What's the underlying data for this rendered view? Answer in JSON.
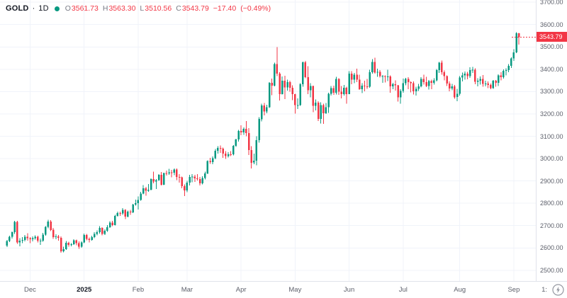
{
  "legend": {
    "symbol": "GOLD",
    "separator": "·",
    "interval": "1D",
    "ohlc": {
      "o_label": "O",
      "o_value": "3561.73",
      "h_label": "H",
      "h_value": "3563.30",
      "l_label": "L",
      "l_value": "3510.56",
      "c_label": "C",
      "c_value": "3543.79",
      "change": "−17.40",
      "change_pct": "(−0.49%)"
    }
  },
  "colors": {
    "up": "#089981",
    "down": "#f23645",
    "grid": "#f0f3fa",
    "axis_border": "#e0e3eb",
    "axis_text": "#5d606b",
    "legend_text": "#131722",
    "price_tag_bg": "#f23645",
    "price_tag_text": "#ffffff",
    "icon_gray": "#9598a1"
  },
  "price_axis": {
    "ticks": [
      "3700.00",
      "3600.00",
      "3500.00",
      "3400.00",
      "3300.00",
      "3200.00",
      "3100.00",
      "3000.00",
      "2900.00",
      "2800.00",
      "2700.00",
      "2600.00",
      "2500.00"
    ],
    "last_price_label": "3543.79"
  },
  "time_axis": {
    "corner_time": "1:"
  },
  "chart_data": {
    "type": "candlestick",
    "title": "GOLD · 1D",
    "symbol": "GOLD",
    "interval": "1D",
    "ohlc_current": {
      "open": 3561.73,
      "high": 3563.3,
      "low": 3510.56,
      "close": 3543.79,
      "change": -17.4,
      "change_percent": -0.49
    },
    "last_price": 3543.79,
    "y_axis": {
      "min": 2452,
      "max": 3710,
      "tick_min": 2500,
      "tick_max": 3700,
      "tick_step": 100
    },
    "x_range": "Nov 2024 – Sep 2025, daily bars",
    "legend_position": "top-left",
    "grid": true,
    "month_ticks": [
      {
        "label": "Dec",
        "index": 9,
        "year": false
      },
      {
        "label": "2025",
        "index": 30,
        "year": true
      },
      {
        "label": "Feb",
        "index": 51,
        "year": false
      },
      {
        "label": "Mar",
        "index": 70,
        "year": false
      },
      {
        "label": "Apr",
        "index": 91,
        "year": false
      },
      {
        "label": "May",
        "index": 112,
        "year": false
      },
      {
        "label": "Jun",
        "index": 133,
        "year": false
      },
      {
        "label": "Jul",
        "index": 154,
        "year": false
      },
      {
        "label": "Aug",
        "index": 176,
        "year": false
      },
      {
        "label": "Sep",
        "index": 197,
        "year": false
      }
    ],
    "candles_format": [
      "open",
      "high",
      "low",
      "close"
    ],
    "candles": [
      [
        2611,
        2636,
        2604,
        2631
      ],
      [
        2631,
        2655,
        2626,
        2650
      ],
      [
        2650,
        2674,
        2642,
        2670
      ],
      [
        2670,
        2721,
        2663,
        2716
      ],
      [
        2716,
        2721,
        2619,
        2625
      ],
      [
        2625,
        2643,
        2608,
        2633
      ],
      [
        2633,
        2648,
        2622,
        2636
      ],
      [
        2636,
        2658,
        2630,
        2650
      ],
      [
        2650,
        2666,
        2633,
        2643
      ],
      [
        2643,
        2648,
        2622,
        2639
      ],
      [
        2639,
        2652,
        2630,
        2644
      ],
      [
        2644,
        2657,
        2638,
        2650
      ],
      [
        2650,
        2655,
        2624,
        2632
      ],
      [
        2632,
        2642,
        2613,
        2633
      ],
      [
        2633,
        2668,
        2628,
        2660
      ],
      [
        2660,
        2698,
        2655,
        2694
      ],
      [
        2694,
        2726,
        2688,
        2718
      ],
      [
        2718,
        2725,
        2675,
        2681
      ],
      [
        2681,
        2689,
        2641,
        2648
      ],
      [
        2648,
        2661,
        2639,
        2652
      ],
      [
        2652,
        2658,
        2633,
        2646
      ],
      [
        2646,
        2652,
        2578,
        2585
      ],
      [
        2585,
        2605,
        2580,
        2594
      ],
      [
        2594,
        2631,
        2591,
        2623
      ],
      [
        2623,
        2628,
        2605,
        2613
      ],
      [
        2613,
        2622,
        2608,
        2617
      ],
      [
        2617,
        2639,
        2613,
        2634
      ],
      [
        2634,
        2638,
        2612,
        2621
      ],
      [
        2621,
        2629,
        2596,
        2606
      ],
      [
        2606,
        2629,
        2601,
        2625
      ],
      [
        2625,
        2664,
        2622,
        2658
      ],
      [
        2658,
        2662,
        2634,
        2640
      ],
      [
        2640,
        2647,
        2625,
        2636
      ],
      [
        2636,
        2655,
        2632,
        2649
      ],
      [
        2649,
        2670,
        2644,
        2662
      ],
      [
        2662,
        2679,
        2656,
        2670
      ],
      [
        2670,
        2697,
        2665,
        2690
      ],
      [
        2690,
        2693,
        2656,
        2663
      ],
      [
        2663,
        2684,
        2658,
        2677
      ],
      [
        2677,
        2702,
        2672,
        2693
      ],
      [
        2693,
        2720,
        2689,
        2714
      ],
      [
        2714,
        2721,
        2697,
        2703
      ],
      [
        2703,
        2748,
        2700,
        2744
      ],
      [
        2744,
        2763,
        2740,
        2756
      ],
      [
        2756,
        2763,
        2744,
        2754
      ],
      [
        2754,
        2778,
        2748,
        2771
      ],
      [
        2771,
        2773,
        2730,
        2741
      ],
      [
        2741,
        2768,
        2737,
        2763
      ],
      [
        2763,
        2770,
        2748,
        2760
      ],
      [
        2760,
        2798,
        2756,
        2794
      ],
      [
        2794,
        2817,
        2790,
        2801
      ],
      [
        2801,
        2830,
        2772,
        2815
      ],
      [
        2815,
        2852,
        2811,
        2844
      ],
      [
        2844,
        2882,
        2840,
        2867
      ],
      [
        2867,
        2873,
        2834,
        2856
      ],
      [
        2856,
        2886,
        2852,
        2861
      ],
      [
        2861,
        2911,
        2858,
        2908
      ],
      [
        2908,
        2942,
        2890,
        2898
      ],
      [
        2898,
        2909,
        2864,
        2904
      ],
      [
        2904,
        2931,
        2900,
        2928
      ],
      [
        2928,
        2940,
        2879,
        2883
      ],
      [
        2883,
        2937,
        2881,
        2935
      ],
      [
        2935,
        2947,
        2924,
        2933
      ],
      [
        2933,
        2954,
        2928,
        2939
      ],
      [
        2939,
        2950,
        2916,
        2936
      ],
      [
        2936,
        2956,
        2926,
        2951
      ],
      [
        2951,
        2956,
        2903,
        2918
      ],
      [
        2918,
        2930,
        2892,
        2916
      ],
      [
        2916,
        2920,
        2867,
        2877
      ],
      [
        2877,
        2885,
        2832,
        2857
      ],
      [
        2857,
        2900,
        2850,
        2892
      ],
      [
        2892,
        2927,
        2880,
        2918
      ],
      [
        2918,
        2930,
        2894,
        2920
      ],
      [
        2920,
        2928,
        2896,
        2911
      ],
      [
        2911,
        2930,
        2902,
        2909
      ],
      [
        2909,
        2918,
        2880,
        2889
      ],
      [
        2889,
        2921,
        2884,
        2913
      ],
      [
        2913,
        2942,
        2906,
        2934
      ],
      [
        2934,
        2993,
        2930,
        2989
      ],
      [
        2989,
        3004,
        2977,
        2984
      ],
      [
        2984,
        3009,
        2975,
        3001
      ],
      [
        3001,
        3043,
        2997,
        3035
      ],
      [
        3035,
        3055,
        3022,
        3047
      ],
      [
        3047,
        3059,
        3025,
        3044
      ],
      [
        3044,
        3050,
        3003,
        3022
      ],
      [
        3022,
        3033,
        2999,
        3011
      ],
      [
        3011,
        3029,
        3005,
        3020
      ],
      [
        3020,
        3033,
        3012,
        3019
      ],
      [
        3019,
        3061,
        3015,
        3057
      ],
      [
        3057,
        3089,
        3052,
        3085
      ],
      [
        3085,
        3128,
        3076,
        3123
      ],
      [
        3123,
        3149,
        3104,
        3118
      ],
      [
        3118,
        3140,
        3106,
        3133
      ],
      [
        3133,
        3168,
        3100,
        3115
      ],
      [
        3115,
        3137,
        3016,
        3038
      ],
      [
        3038,
        3055,
        2956,
        2982
      ],
      [
        2982,
        3022,
        2975,
        2990
      ],
      [
        2990,
        3100,
        2970,
        3082
      ],
      [
        3082,
        3185,
        3072,
        3177
      ],
      [
        3177,
        3246,
        3167,
        3238
      ],
      [
        3238,
        3249,
        3193,
        3211
      ],
      [
        3211,
        3241,
        3203,
        3230
      ],
      [
        3230,
        3343,
        3226,
        3340
      ],
      [
        3340,
        3358,
        3284,
        3327
      ],
      [
        3327,
        3430,
        3323,
        3424
      ],
      [
        3424,
        3500,
        3370,
        3381
      ],
      [
        3381,
        3386,
        3260,
        3288
      ],
      [
        3288,
        3368,
        3287,
        3349
      ],
      [
        3349,
        3371,
        3266,
        3319
      ],
      [
        3319,
        3353,
        3305,
        3342
      ],
      [
        3342,
        3348,
        3300,
        3317
      ],
      [
        3317,
        3328,
        3261,
        3288
      ],
      [
        3288,
        3290,
        3202,
        3239
      ],
      [
        3239,
        3269,
        3222,
        3240
      ],
      [
        3240,
        3337,
        3237,
        3333
      ],
      [
        3333,
        3435,
        3322,
        3431
      ],
      [
        3431,
        3438,
        3360,
        3365
      ],
      [
        3365,
        3414,
        3288,
        3306
      ],
      [
        3306,
        3337,
        3275,
        3325
      ],
      [
        3325,
        3327,
        3207,
        3236
      ],
      [
        3236,
        3265,
        3216,
        3250
      ],
      [
        3250,
        3257,
        3168,
        3177
      ],
      [
        3177,
        3252,
        3157,
        3240
      ],
      [
        3240,
        3245,
        3155,
        3203
      ],
      [
        3203,
        3249,
        3200,
        3230
      ],
      [
        3230,
        3295,
        3204,
        3290
      ],
      [
        3290,
        3325,
        3282,
        3315
      ],
      [
        3315,
        3326,
        3285,
        3295
      ],
      [
        3295,
        3366,
        3287,
        3357
      ],
      [
        3357,
        3360,
        3285,
        3300
      ],
      [
        3300,
        3325,
        3270,
        3288
      ],
      [
        3288,
        3330,
        3282,
        3317
      ],
      [
        3317,
        3322,
        3245,
        3289
      ],
      [
        3289,
        3392,
        3288,
        3381
      ],
      [
        3381,
        3392,
        3333,
        3353
      ],
      [
        3353,
        3384,
        3338,
        3376
      ],
      [
        3376,
        3403,
        3343,
        3353
      ],
      [
        3353,
        3375,
        3307,
        3311
      ],
      [
        3311,
        3338,
        3293,
        3326
      ],
      [
        3326,
        3348,
        3301,
        3323
      ],
      [
        3323,
        3357,
        3312,
        3322
      ],
      [
        3322,
        3398,
        3317,
        3386
      ],
      [
        3386,
        3446,
        3381,
        3433
      ],
      [
        3433,
        3451,
        3381,
        3385
      ],
      [
        3385,
        3403,
        3366,
        3389
      ],
      [
        3389,
        3396,
        3363,
        3369
      ],
      [
        3369,
        3374,
        3340,
        3370
      ],
      [
        3370,
        3372,
        3341,
        3368
      ],
      [
        3368,
        3398,
        3347,
        3368
      ],
      [
        3368,
        3372,
        3295,
        3324
      ],
      [
        3324,
        3340,
        3310,
        3333
      ],
      [
        3333,
        3350,
        3305,
        3328
      ],
      [
        3328,
        3330,
        3255,
        3274
      ],
      [
        3274,
        3310,
        3246,
        3303
      ],
      [
        3303,
        3358,
        3295,
        3338
      ],
      [
        3338,
        3362,
        3328,
        3357
      ],
      [
        3357,
        3365,
        3311,
        3343
      ],
      [
        3343,
        3345,
        3297,
        3337
      ],
      [
        3337,
        3345,
        3287,
        3301
      ],
      [
        3301,
        3322,
        3283,
        3313
      ],
      [
        3313,
        3334,
        3303,
        3324
      ],
      [
        3324,
        3364,
        3319,
        3356
      ],
      [
        3356,
        3375,
        3332,
        3343
      ],
      [
        3343,
        3366,
        3320,
        3325
      ],
      [
        3325,
        3352,
        3309,
        3347
      ],
      [
        3347,
        3353,
        3310,
        3339
      ],
      [
        3339,
        3360,
        3331,
        3350
      ],
      [
        3350,
        3401,
        3345,
        3397
      ],
      [
        3397,
        3433,
        3384,
        3430
      ],
      [
        3430,
        3439,
        3375,
        3387
      ],
      [
        3387,
        3394,
        3350,
        3369
      ],
      [
        3369,
        3372,
        3325,
        3336
      ],
      [
        3336,
        3345,
        3301,
        3314
      ],
      [
        3314,
        3334,
        3306,
        3324
      ],
      [
        3324,
        3330,
        3268,
        3275
      ],
      [
        3275,
        3312,
        3257,
        3290
      ],
      [
        3290,
        3369,
        3282,
        3363
      ],
      [
        3363,
        3385,
        3346,
        3373
      ],
      [
        3373,
        3390,
        3353,
        3380
      ],
      [
        3380,
        3389,
        3355,
        3369
      ],
      [
        3369,
        3409,
        3361,
        3397
      ],
      [
        3397,
        3410,
        3383,
        3398
      ],
      [
        3398,
        3404,
        3333,
        3344
      ],
      [
        3344,
        3360,
        3324,
        3348
      ],
      [
        3348,
        3368,
        3331,
        3357
      ],
      [
        3357,
        3374,
        3322,
        3335
      ],
      [
        3335,
        3348,
        3323,
        3336
      ],
      [
        3336,
        3346,
        3316,
        3330
      ],
      [
        3330,
        3336,
        3311,
        3315
      ],
      [
        3315,
        3352,
        3313,
        3348
      ],
      [
        3348,
        3352,
        3322,
        3339
      ],
      [
        3339,
        3378,
        3325,
        3372
      ],
      [
        3372,
        3386,
        3350,
        3365
      ],
      [
        3365,
        3399,
        3358,
        3393
      ],
      [
        3393,
        3404,
        3372,
        3397
      ],
      [
        3397,
        3423,
        3386,
        3416
      ],
      [
        3416,
        3454,
        3406,
        3448
      ],
      [
        3448,
        3489,
        3438,
        3476
      ],
      [
        3476,
        3566,
        3472,
        3561.19
      ],
      [
        3561.73,
        3563.3,
        3510.56,
        3543.79
      ]
    ]
  }
}
